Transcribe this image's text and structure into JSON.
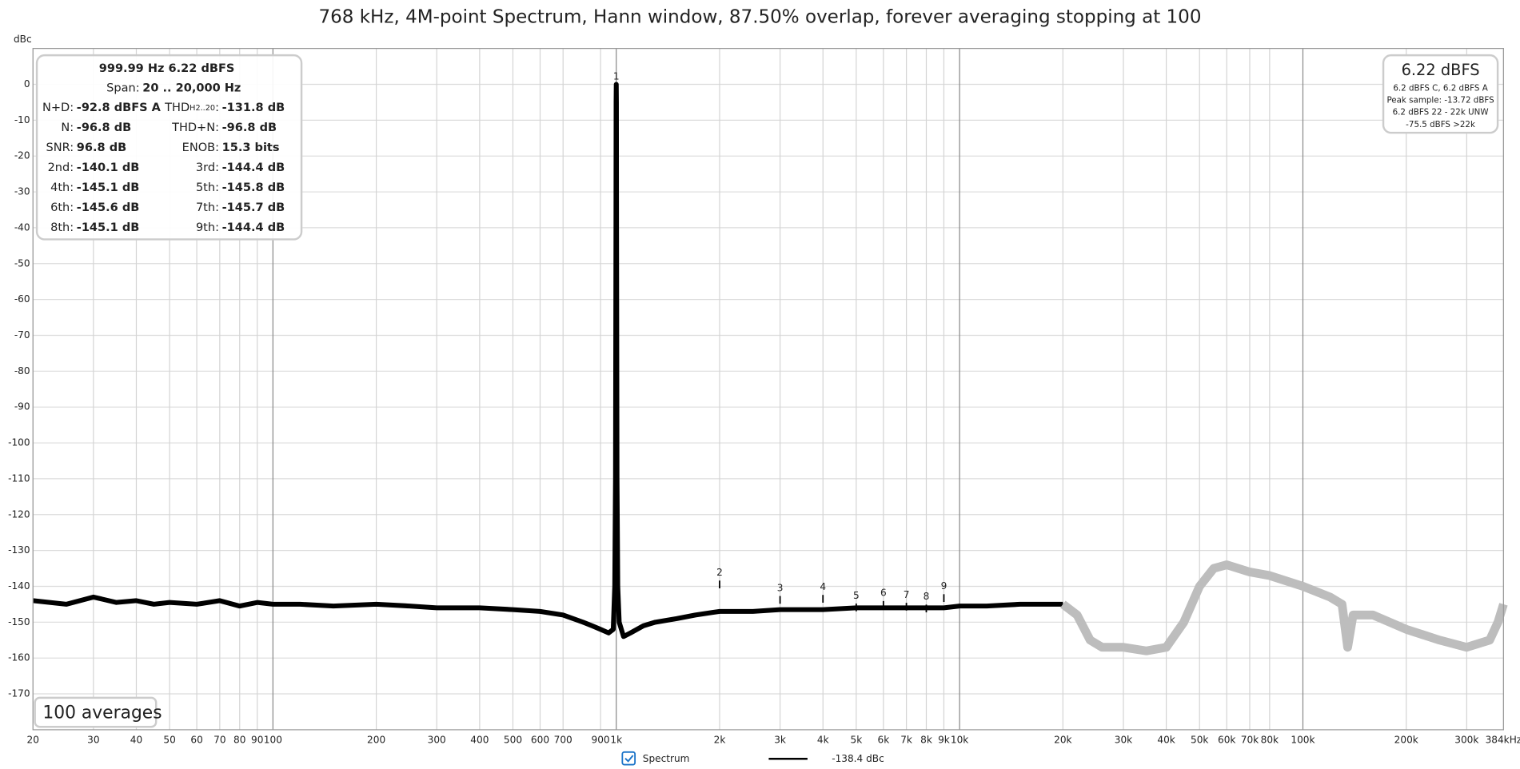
{
  "chart_data": {
    "type": "line",
    "title": "768 kHz, 4M-point Spectrum, Hann window, 87.50% overlap, forever averaging stopping at 100",
    "y_label": "dBc",
    "xscale": "log",
    "grid": true,
    "xlim": [
      20,
      384000
    ],
    "ylim": [
      -180,
      10
    ],
    "yticks": [
      0,
      -10,
      -20,
      -30,
      -40,
      -50,
      -60,
      -70,
      -80,
      -90,
      -100,
      -110,
      -120,
      -130,
      -140,
      -150,
      -160,
      -170
    ],
    "xticks": [
      20,
      30,
      40,
      50,
      60,
      70,
      80,
      90,
      100,
      200,
      300,
      400,
      500,
      600,
      700,
      900,
      {
        "value": 1000,
        "label": "1k"
      },
      {
        "value": 2000,
        "label": "2k"
      },
      {
        "value": 3000,
        "label": "3k"
      },
      {
        "value": 4000,
        "label": "4k"
      },
      {
        "value": 5000,
        "label": "5k"
      },
      {
        "value": 6000,
        "label": "6k"
      },
      {
        "value": 7000,
        "label": "7k"
      },
      {
        "value": 8000,
        "label": "8k"
      },
      {
        "value": 9000,
        "label": "9k"
      },
      {
        "value": 10000,
        "label": "10k"
      },
      {
        "value": 20000,
        "label": "20k"
      },
      {
        "value": 30000,
        "label": "30k"
      },
      {
        "value": 40000,
        "label": "40k"
      },
      {
        "value": 50000,
        "label": "50k"
      },
      {
        "value": 60000,
        "label": "60k"
      },
      {
        "value": 70000,
        "label": "70k"
      },
      {
        "value": 80000,
        "label": "80k"
      },
      {
        "value": 100000,
        "label": "100k"
      },
      {
        "value": 200000,
        "label": "200k"
      },
      {
        "value": 300000,
        "label": "300k"
      },
      {
        "value": 384000,
        "label": "384kHz"
      }
    ],
    "series": [
      {
        "name": "Spectrum",
        "color": "#000000",
        "x": [
          20,
          25,
          30,
          35,
          40,
          45,
          50,
          60,
          70,
          80,
          90,
          100,
          120,
          150,
          200,
          250,
          300,
          400,
          500,
          600,
          700,
          800,
          850,
          900,
          950,
          980,
          990,
          995,
          998,
          999,
          1000,
          1001,
          1002,
          1005,
          1010,
          1020,
          1050,
          1100,
          1200,
          1300,
          1500,
          1700,
          2000,
          2500,
          3000,
          4000,
          5000,
          6000,
          7000,
          8000,
          9000,
          10000,
          12000,
          15000,
          20000
        ],
        "values": [
          -144,
          -145,
          -143,
          -144.5,
          -144,
          -145,
          -144.5,
          -145,
          -144,
          -145.5,
          -144.5,
          -145,
          -145,
          -145.5,
          -145,
          -145.5,
          -146,
          -146,
          -146.5,
          -147,
          -148,
          -150,
          -151,
          -152,
          -153,
          -152,
          -140,
          -110,
          -40,
          -5,
          0,
          -5,
          -40,
          -110,
          -140,
          -150,
          -154,
          -153,
          -151,
          -150,
          -149,
          -148,
          -147,
          -147,
          -146.5,
          -146.5,
          -146,
          -146,
          -146,
          -146,
          -146,
          -145.5,
          -145.5,
          -145,
          -145
        ]
      },
      {
        "color": "#bdbdbd",
        "x": [
          20000,
          22000,
          24000,
          26000,
          30000,
          35000,
          40000,
          45000,
          50000,
          55000,
          60000,
          70000,
          80000,
          100000,
          120000,
          130000,
          135000,
          140000,
          160000,
          200000,
          250000,
          300000,
          350000,
          370000,
          384000
        ],
        "values": [
          -145,
          -148,
          -155,
          -157,
          -157,
          -158,
          -157,
          -150,
          -140,
          -135,
          -134,
          -136,
          -137,
          -140,
          -143,
          -145,
          -157,
          -148,
          -148,
          -152,
          -155,
          -157,
          -155,
          -150,
          -145
        ]
      }
    ],
    "markers": {
      "labels": [
        "1",
        "2",
        "3",
        "4",
        "5",
        "6",
        "7",
        "8",
        "9"
      ],
      "x": [
        1000,
        2000,
        3000,
        4000,
        5000,
        6000,
        7000,
        8000,
        9000
      ],
      "values": [
        0,
        -138.4,
        -142.7,
        -142.4,
        -144.8,
        -144.1,
        -144.6,
        -145.1,
        -142.2
      ]
    },
    "legend_value": "-138.4 dBc",
    "info": {
      "frequency": "999.99 Hz",
      "level": "6.22 dBFS",
      "span_label": "Span:",
      "span": "20 .. 20,000 Hz",
      "rows": [
        [
          {
            "label": "N+D:",
            "value": "-92.8 dBFS A"
          },
          {
            "label": "THD",
            "sub": "H2..20",
            "colon": ":",
            "value": "-131.8 dB"
          }
        ],
        [
          {
            "label": "N:",
            "value": "-96.8 dB"
          },
          {
            "label": "THD+N:",
            "value": "-96.8 dB"
          }
        ],
        [
          {
            "label": "SNR:",
            "value": "96.8 dB"
          },
          {
            "label": "ENOB:",
            "value": "15.3 bits"
          }
        ],
        [
          {
            "label": "2nd:",
            "value": "-140.1 dB"
          },
          {
            "label": "3rd:",
            "value": "-144.4 dB"
          }
        ],
        [
          {
            "label": "4th:",
            "value": "-145.1 dB"
          },
          {
            "label": "5th:",
            "value": "-145.8 dB"
          }
        ],
        [
          {
            "label": "6th:",
            "value": "-145.6 dB"
          },
          {
            "label": "7th:",
            "value": "-145.7 dB"
          }
        ],
        [
          {
            "label": "8th:",
            "value": "-145.1 dB"
          },
          {
            "label": "9th:",
            "value": "-144.4 dB"
          }
        ]
      ]
    },
    "level_box": {
      "main": "6.22 dBFS",
      "lines": [
        "6.2 dBFS C, 6.2 dBFS A",
        "Peak sample: -13.72 dBFS",
        "6.2 dBFS 22 - 22k UNW",
        "-75.5 dBFS >22k"
      ]
    },
    "averages": "100 averages"
  }
}
